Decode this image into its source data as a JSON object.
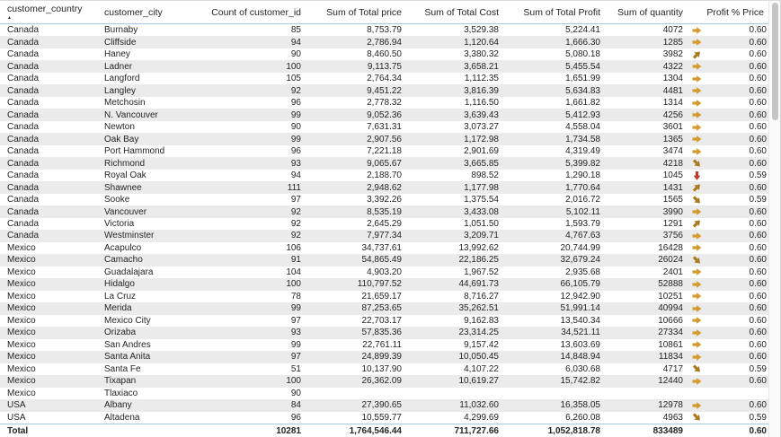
{
  "icons": {
    "sort_ascending": "▲"
  },
  "colors": {
    "header_line": "#a6c9e8",
    "band": "#ebebeb",
    "arrow_gold": "#d39a2d",
    "arrow_gold_dark": "#aa7b1e",
    "arrow_red": "#c13b30"
  },
  "table": {
    "columns": [
      {
        "label": "customer_country",
        "sorted": "ascending"
      },
      {
        "label": "customer_city"
      },
      {
        "label": "Count of customer_id"
      },
      {
        "label": "Sum of Total price"
      },
      {
        "label": "Sum of Total Cost"
      },
      {
        "label": "Sum of Total Profit"
      },
      {
        "label": "Sum of quantity"
      },
      {
        "label": "Profit % Price"
      }
    ],
    "rows": [
      {
        "country": "Canada",
        "city": "Burnaby",
        "count": "85",
        "price": "8,753.79",
        "cost": "3,529.38",
        "profit": "5,224.41",
        "qty": "4072",
        "trend": "right",
        "pct": "0.60"
      },
      {
        "country": "Canada",
        "city": "Cliffside",
        "count": "94",
        "price": "2,786.94",
        "cost": "1,120.64",
        "profit": "1,666.30",
        "qty": "1285",
        "trend": "right",
        "pct": "0.60"
      },
      {
        "country": "Canada",
        "city": "Haney",
        "count": "90",
        "price": "8,460.50",
        "cost": "3,380.32",
        "profit": "5,080.18",
        "qty": "3982",
        "trend": "up-right",
        "pct": "0.60"
      },
      {
        "country": "Canada",
        "city": "Ladner",
        "count": "100",
        "price": "9,113.75",
        "cost": "3,658.21",
        "profit": "5,455.54",
        "qty": "4322",
        "trend": "right",
        "pct": "0.60"
      },
      {
        "country": "Canada",
        "city": "Langford",
        "count": "105",
        "price": "2,764.34",
        "cost": "1,112.35",
        "profit": "1,651.99",
        "qty": "1304",
        "trend": "right",
        "pct": "0.60"
      },
      {
        "country": "Canada",
        "city": "Langley",
        "count": "92",
        "price": "9,451.22",
        "cost": "3,816.39",
        "profit": "5,634.83",
        "qty": "4481",
        "trend": "right",
        "pct": "0.60"
      },
      {
        "country": "Canada",
        "city": "Metchosin",
        "count": "96",
        "price": "2,778.32",
        "cost": "1,116.50",
        "profit": "1,661.82",
        "qty": "1314",
        "trend": "right",
        "pct": "0.60"
      },
      {
        "country": "Canada",
        "city": "N. Vancouver",
        "count": "99",
        "price": "9,052.36",
        "cost": "3,639.43",
        "profit": "5,412.93",
        "qty": "4256",
        "trend": "right",
        "pct": "0.60"
      },
      {
        "country": "Canada",
        "city": "Newton",
        "count": "90",
        "price": "7,631.31",
        "cost": "3,073.27",
        "profit": "4,558.04",
        "qty": "3601",
        "trend": "right",
        "pct": "0.60"
      },
      {
        "country": "Canada",
        "city": "Oak Bay",
        "count": "99",
        "price": "2,907.56",
        "cost": "1,172.98",
        "profit": "1,734.58",
        "qty": "1365",
        "trend": "right",
        "pct": "0.60"
      },
      {
        "country": "Canada",
        "city": "Port Hammond",
        "count": "96",
        "price": "7,221.18",
        "cost": "2,901.69",
        "profit": "4,319.49",
        "qty": "3474",
        "trend": "right",
        "pct": "0.60"
      },
      {
        "country": "Canada",
        "city": "Richmond",
        "count": "93",
        "price": "9,065.67",
        "cost": "3,665.85",
        "profit": "5,399.82",
        "qty": "4218",
        "trend": "down-right",
        "pct": "0.60"
      },
      {
        "country": "Canada",
        "city": "Royal Oak",
        "count": "94",
        "price": "2,188.70",
        "cost": "898.52",
        "profit": "1,290.18",
        "qty": "1045",
        "trend": "down",
        "pct": "0.59"
      },
      {
        "country": "Canada",
        "city": "Shawnee",
        "count": "111",
        "price": "2,948.62",
        "cost": "1,177.98",
        "profit": "1,770.64",
        "qty": "1431",
        "trend": "up-right",
        "pct": "0.60"
      },
      {
        "country": "Canada",
        "city": "Sooke",
        "count": "97",
        "price": "3,392.26",
        "cost": "1,375.54",
        "profit": "2,016.72",
        "qty": "1565",
        "trend": "down-right",
        "pct": "0.59"
      },
      {
        "country": "Canada",
        "city": "Vancouver",
        "count": "92",
        "price": "8,535.19",
        "cost": "3,433.08",
        "profit": "5,102.11",
        "qty": "3990",
        "trend": "right",
        "pct": "0.60"
      },
      {
        "country": "Canada",
        "city": "Victoria",
        "count": "92",
        "price": "2,645.29",
        "cost": "1,051.50",
        "profit": "1,593.79",
        "qty": "1291",
        "trend": "up-right",
        "pct": "0.60"
      },
      {
        "country": "Canada",
        "city": "Westminster",
        "count": "92",
        "price": "7,977.34",
        "cost": "3,209.71",
        "profit": "4,767.63",
        "qty": "3756",
        "trend": "right",
        "pct": "0.60"
      },
      {
        "country": "Mexico",
        "city": "Acapulco",
        "count": "106",
        "price": "34,737.61",
        "cost": "13,992.62",
        "profit": "20,744.99",
        "qty": "16428",
        "trend": "right",
        "pct": "0.60"
      },
      {
        "country": "Mexico",
        "city": "Camacho",
        "count": "91",
        "price": "54,865.49",
        "cost": "22,186.25",
        "profit": "32,679.24",
        "qty": "26024",
        "trend": "down-right",
        "pct": "0.60"
      },
      {
        "country": "Mexico",
        "city": "Guadalajara",
        "count": "104",
        "price": "4,903.20",
        "cost": "1,967.52",
        "profit": "2,935.68",
        "qty": "2401",
        "trend": "right",
        "pct": "0.60"
      },
      {
        "country": "Mexico",
        "city": "Hidalgo",
        "count": "100",
        "price": "110,797.52",
        "cost": "44,691.73",
        "profit": "66,105.79",
        "qty": "52888",
        "trend": "right",
        "pct": "0.60"
      },
      {
        "country": "Mexico",
        "city": "La Cruz",
        "count": "78",
        "price": "21,659.17",
        "cost": "8,716.27",
        "profit": "12,942.90",
        "qty": "10251",
        "trend": "right",
        "pct": "0.60"
      },
      {
        "country": "Mexico",
        "city": "Merida",
        "count": "99",
        "price": "87,253.65",
        "cost": "35,262.51",
        "profit": "51,991.14",
        "qty": "40994",
        "trend": "right",
        "pct": "0.60"
      },
      {
        "country": "Mexico",
        "city": "Mexico City",
        "count": "97",
        "price": "22,703.17",
        "cost": "9,162.83",
        "profit": "13,540.34",
        "qty": "10666",
        "trend": "right",
        "pct": "0.60"
      },
      {
        "country": "Mexico",
        "city": "Orizaba",
        "count": "93",
        "price": "57,835.36",
        "cost": "23,314.25",
        "profit": "34,521.11",
        "qty": "27334",
        "trend": "right",
        "pct": "0.60"
      },
      {
        "country": "Mexico",
        "city": "San Andres",
        "count": "99",
        "price": "22,761.11",
        "cost": "9,157.42",
        "profit": "13,603.69",
        "qty": "10861",
        "trend": "right",
        "pct": "0.60"
      },
      {
        "country": "Mexico",
        "city": "Santa Anita",
        "count": "97",
        "price": "24,899.39",
        "cost": "10,050.45",
        "profit": "14,848.94",
        "qty": "11834",
        "trend": "right",
        "pct": "0.60"
      },
      {
        "country": "Mexico",
        "city": "Santa Fe",
        "count": "51",
        "price": "10,137.90",
        "cost": "4,107.22",
        "profit": "6,030.68",
        "qty": "4717",
        "trend": "down-right",
        "pct": "0.59"
      },
      {
        "country": "Mexico",
        "city": "Tixapan",
        "count": "100",
        "price": "26,362.09",
        "cost": "10,619.27",
        "profit": "15,742.82",
        "qty": "12440",
        "trend": "right",
        "pct": "0.60"
      },
      {
        "country": "Mexico",
        "city": "Tlaxiaco",
        "count": "90",
        "price": "",
        "cost": "",
        "profit": "",
        "qty": "",
        "trend": "",
        "pct": ""
      },
      {
        "country": "USA",
        "city": "Albany",
        "count": "84",
        "price": "27,390.65",
        "cost": "11,032.60",
        "profit": "16,358.05",
        "qty": "12978",
        "trend": "right",
        "pct": "0.60"
      },
      {
        "country": "USA",
        "city": "Altadena",
        "count": "96",
        "price": "10,559.77",
        "cost": "4,299.69",
        "profit": "6,260.08",
        "qty": "4963",
        "trend": "down-right",
        "pct": "0.59"
      }
    ],
    "total": {
      "label": "Total",
      "count": "10281",
      "price": "1,764,546.44",
      "cost": "711,727.66",
      "profit": "1,052,818.78",
      "qty": "833489",
      "pct": "0.60"
    }
  }
}
